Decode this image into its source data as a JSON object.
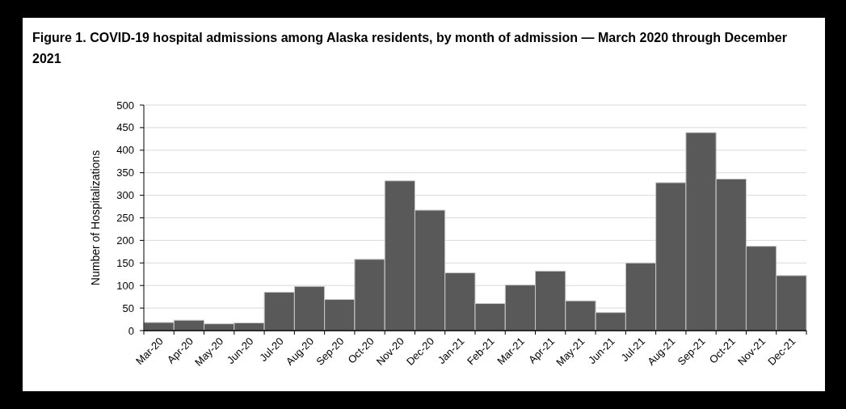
{
  "chart_data": {
    "type": "bar",
    "title": "Figure 1. COVID-19 hospital admissions among Alaska residents, by month of admission — March 2020 through December 2021",
    "ylabel": "Number of Hospitalizations",
    "categories": [
      "Mar-20",
      "Apr-20",
      "May-20",
      "Jun-20",
      "Jul-20",
      "Aug-20",
      "Sep-20",
      "Oct-20",
      "Nov-20",
      "Dec-20",
      "Jan-21",
      "Feb-21",
      "Mar-21",
      "Apr-21",
      "May-21",
      "Jun-21",
      "Jul-21",
      "Aug-21",
      "Sep-21",
      "Oct-21",
      "Nov-21",
      "Dec-21"
    ],
    "values": [
      18,
      23,
      15,
      17,
      85,
      98,
      69,
      158,
      332,
      267,
      128,
      60,
      101,
      132,
      66,
      40,
      150,
      328,
      439,
      336,
      187,
      122
    ],
    "color": "#595959",
    "ylim": [
      0,
      500
    ],
    "yticks": [
      0,
      50,
      100,
      150,
      200,
      250,
      300,
      350,
      400,
      450,
      500
    ],
    "grid": "y"
  }
}
